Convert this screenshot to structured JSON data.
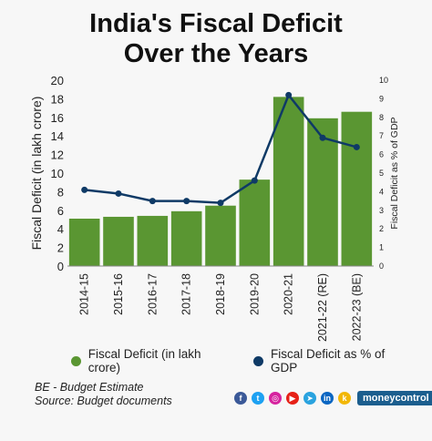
{
  "title": {
    "line1": "India's Fiscal Deficit",
    "line2": "Over the Years"
  },
  "chart_data": {
    "type": "bar",
    "categories": [
      "2014-15",
      "2015-16",
      "2016-17",
      "2017-18",
      "2018-19",
      "2019-20",
      "2020-21",
      "2021-22 (RE)",
      "2022-23 (BE)"
    ],
    "series": [
      {
        "name": "Fiscal Deficit (in lakh crore)",
        "type": "bar",
        "axis": "left",
        "values": [
          5.1,
          5.3,
          5.4,
          5.9,
          6.5,
          9.3,
          18.2,
          15.9,
          16.6
        ]
      },
      {
        "name": "Fiscal Deficit as % of GDP",
        "type": "line",
        "axis": "right",
        "values": [
          4.1,
          3.9,
          3.5,
          3.5,
          3.4,
          4.6,
          9.2,
          6.9,
          6.4
        ]
      }
    ],
    "ylabel": "Fiscal Deficit (in lakh crore)",
    "y2label": "Fiscal Deficit as % of GDP",
    "ylim": [
      0,
      20
    ],
    "y2lim": [
      0,
      10
    ],
    "yticks": [
      0,
      2,
      4,
      6,
      8,
      10,
      12,
      14,
      16,
      18,
      20
    ],
    "y2ticks": [
      0,
      1,
      2,
      3,
      4,
      5,
      6,
      7,
      8,
      9,
      10
    ],
    "grid": false,
    "legend_position": "bottom"
  },
  "colors": {
    "bar": "#5a9632",
    "line": "#0f3a66",
    "text": "#111111"
  },
  "legend": {
    "bars_label": "Fiscal Deficit (in lakh crore)",
    "line_label": "Fiscal Deficit as % of GDP"
  },
  "notes": {
    "be": "BE - Budget Estimate",
    "source": "Source: Budget documents"
  },
  "footer": {
    "icons": [
      "facebook-icon",
      "twitter-icon",
      "instagram-icon",
      "youtube-icon",
      "telegram-icon",
      "linkedin-icon",
      "koo-icon"
    ],
    "brand": "moneycontrol"
  }
}
